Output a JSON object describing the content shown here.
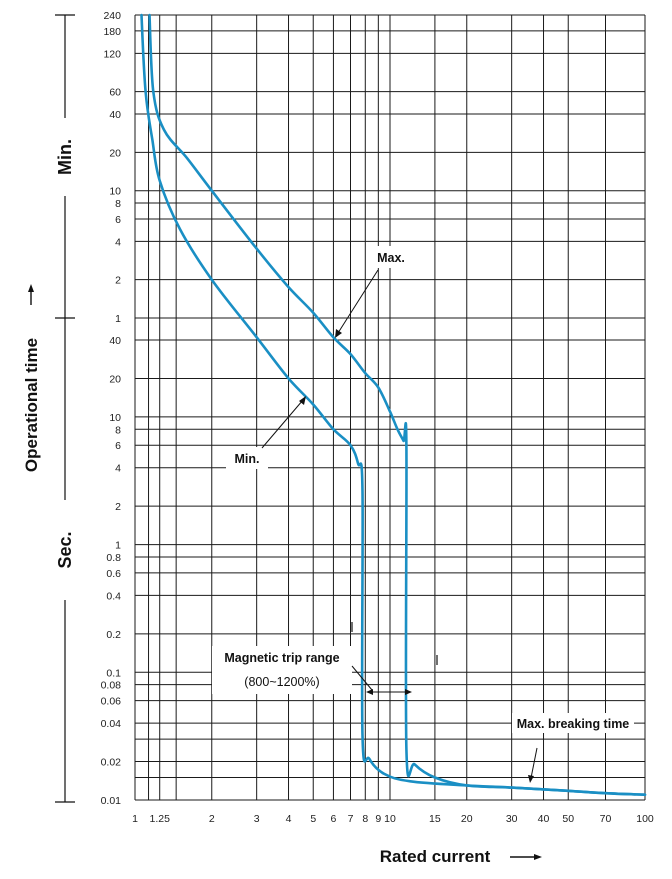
{
  "chart_data": {
    "type": "line",
    "xlabel": "Rated current",
    "ylabel": "Operational time",
    "x_scale": "log",
    "y_scale": "log",
    "xlim": [
      1,
      100
    ],
    "x_ticks": [
      "1",
      "1.25",
      "2",
      "3",
      "4",
      "5",
      "6",
      "7",
      "8",
      "9",
      "10",
      "15",
      "20",
      "30",
      "40",
      "50",
      "70",
      "100"
    ],
    "x_tick_values": [
      1,
      1.25,
      2,
      3,
      4,
      5,
      6,
      7,
      8,
      9,
      10,
      15,
      20,
      30,
      40,
      50,
      70,
      100
    ],
    "extra_x_gridlines": [
      1.13,
      1.45
    ],
    "y_units": [
      {
        "label": "Min.",
        "ticks": [
          "240",
          "180",
          "120",
          "60",
          "40",
          "20",
          "10",
          "8",
          "6",
          "4",
          "2",
          "1"
        ]
      },
      {
        "label": "Sec.",
        "ticks": [
          "40",
          "20",
          "10",
          "8",
          "6",
          "4",
          "2",
          "1",
          "0.8",
          "0.6",
          "0.4",
          "0.2",
          "0.1",
          "0.08",
          "0.06",
          "0.04",
          "0.02",
          "0.01"
        ]
      }
    ],
    "y_tick_values_seconds": [
      14400,
      10800,
      7200,
      3600,
      2400,
      1200,
      600,
      480,
      360,
      240,
      120,
      60,
      40,
      20,
      10,
      8,
      6,
      4,
      2,
      1,
      0.8,
      0.6,
      0.4,
      0.2,
      0.1,
      0.08,
      0.06,
      0.04,
      0.02,
      0.01
    ],
    "extra_y_gridlines_seconds": [
      0.03,
      0.015
    ],
    "grid": true,
    "series": [
      {
        "name": "Max.",
        "points_seconds": [
          [
            1.14,
            14400
          ],
          [
            1.18,
            3600
          ],
          [
            1.3,
            1800
          ],
          [
            1.6,
            1080
          ],
          [
            2,
            600
          ],
          [
            3,
            210
          ],
          [
            4,
            105
          ],
          [
            5,
            66
          ],
          [
            6,
            42
          ],
          [
            7,
            31
          ],
          [
            8,
            22
          ],
          [
            9,
            17
          ],
          [
            10,
            11
          ],
          [
            10.7,
            8
          ],
          [
            11.3,
            6.5
          ],
          [
            11.6,
            5.8
          ],
          [
            11.6,
            0.025
          ],
          [
            12.5,
            0.019
          ],
          [
            15,
            0.015
          ],
          [
            20,
            0.013
          ],
          [
            30,
            0.0125
          ],
          [
            50,
            0.0118
          ],
          [
            70,
            0.0113
          ],
          [
            100,
            0.011
          ]
        ]
      },
      {
        "name": "Min.",
        "points_seconds": [
          [
            1.06,
            14400
          ],
          [
            1.1,
            3600
          ],
          [
            1.17,
            1500
          ],
          [
            1.25,
            720
          ],
          [
            1.5,
            300
          ],
          [
            2,
            120
          ],
          [
            3,
            42
          ],
          [
            4,
            20
          ],
          [
            5,
            12.5
          ],
          [
            6,
            8
          ],
          [
            7,
            6
          ],
          [
            7.5,
            4.3
          ],
          [
            7.8,
            2.6
          ],
          [
            7.8,
            0.032
          ],
          [
            8.3,
            0.021
          ],
          [
            9.5,
            0.016
          ],
          [
            12,
            0.014
          ],
          [
            20,
            0.013
          ],
          [
            30,
            0.0125
          ],
          [
            50,
            0.0118
          ],
          [
            70,
            0.0113
          ],
          [
            100,
            0.011
          ]
        ]
      }
    ],
    "annotations": {
      "max": "Max.",
      "min": "Min.",
      "magnetic_trip": "Magnetic trip range",
      "magnetic_trip_range": "(800~1200%)",
      "max_breaking": "Max. breaking time"
    }
  }
}
